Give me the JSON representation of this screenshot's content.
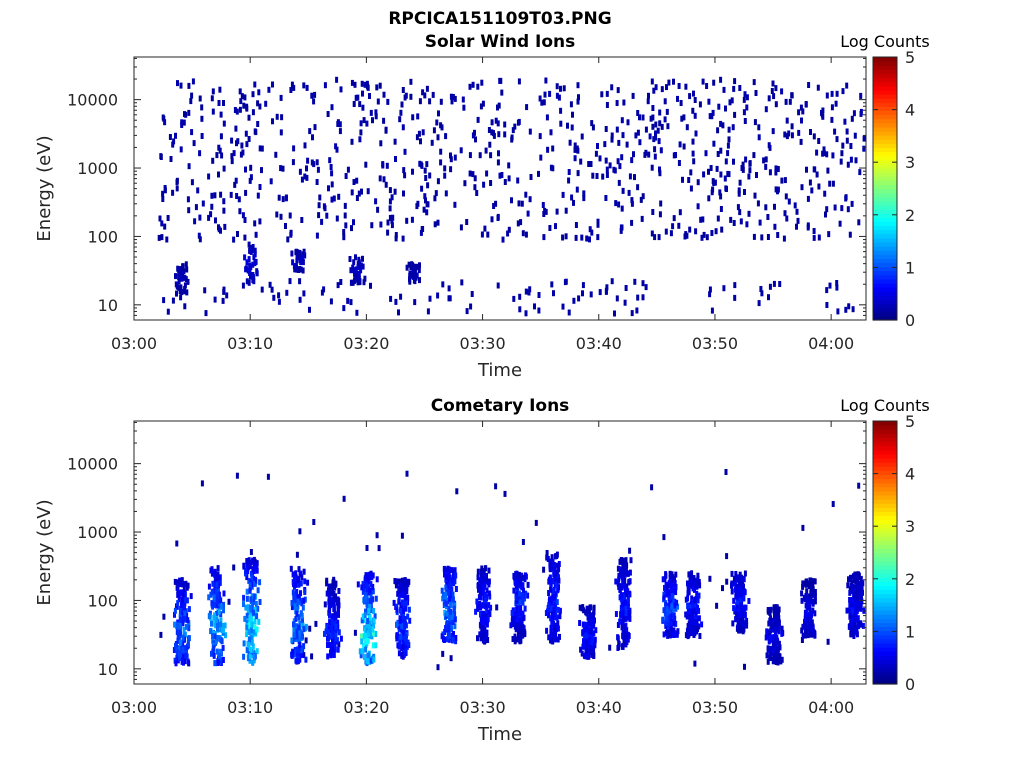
{
  "figure": {
    "title": "RPCICA151109T03.PNG"
  },
  "chart_data": [
    {
      "type": "heatmap",
      "title": "Solar Wind Ions",
      "xlabel": "Time",
      "ylabel": "Energy (eV)",
      "yscale": "log",
      "ylim": [
        6,
        42000
      ],
      "xlim": [
        "03:00",
        "04:03"
      ],
      "x_ticks": [
        "03:00",
        "03:10",
        "03:20",
        "03:30",
        "03:40",
        "03:50",
        "04:00"
      ],
      "y_ticks": [
        "10",
        "100",
        "1000",
        "10000"
      ],
      "colorbar": {
        "label": "Log Counts",
        "ticks": [
          "0",
          "1",
          "2",
          "3",
          "4",
          "5"
        ],
        "range": [
          0,
          5
        ],
        "colormap": "jet"
      },
      "data_start": "03:02",
      "data_end": "04:03",
      "summary": "Sparse counts (log ~0-0.5) scattered between 100 eV and 20000 eV throughout; low-energy bursts (10-80 eV) near 03:05, 03:10, 03:14, 03:19, 03:24",
      "bursts": [
        {
          "time": "03:04",
          "energy_range": [
            15,
            40
          ],
          "level": 0.3
        },
        {
          "time": "03:10",
          "energy_range": [
            20,
            80
          ],
          "level": 0.5
        },
        {
          "time": "03:14",
          "energy_range": [
            30,
            60
          ],
          "level": 0.4
        },
        {
          "time": "03:19",
          "energy_range": [
            20,
            50
          ],
          "level": 0.4
        },
        {
          "time": "03:24",
          "energy_range": [
            20,
            40
          ],
          "level": 0.3
        }
      ],
      "background_level": 0.2
    },
    {
      "type": "heatmap",
      "title": "Cometary Ions",
      "xlabel": "Time",
      "ylabel": "Energy (eV)",
      "yscale": "log",
      "ylim": [
        6,
        42000
      ],
      "xlim": [
        "03:00",
        "04:03"
      ],
      "x_ticks": [
        "03:00",
        "03:10",
        "03:20",
        "03:30",
        "03:40",
        "03:50",
        "04:00"
      ],
      "y_ticks": [
        "10",
        "100",
        "1000",
        "10000"
      ],
      "colorbar": {
        "label": "Log Counts",
        "ticks": [
          "0",
          "1",
          "2",
          "3",
          "4",
          "5"
        ],
        "range": [
          0,
          5
        ],
        "colormap": "jet"
      },
      "bursts": [
        {
          "time": "03:04",
          "energy_range": [
            12,
            200
          ],
          "peak_energy": 35,
          "level": 1.3
        },
        {
          "time": "03:07",
          "energy_range": [
            12,
            300
          ],
          "peak_energy": 40,
          "level": 1.6
        },
        {
          "time": "03:10",
          "energy_range": [
            12,
            400
          ],
          "peak_energy": 35,
          "level": 2.0
        },
        {
          "time": "03:14",
          "energy_range": [
            12,
            300
          ],
          "peak_energy": 45,
          "level": 1.4
        },
        {
          "time": "03:17",
          "energy_range": [
            15,
            200
          ],
          "peak_energy": 35,
          "level": 0.9
        },
        {
          "time": "03:20",
          "energy_range": [
            12,
            250
          ],
          "peak_energy": 30,
          "level": 2.1
        },
        {
          "time": "03:23",
          "energy_range": [
            15,
            200
          ],
          "peak_energy": 40,
          "level": 1.1
        },
        {
          "time": "03:27",
          "energy_range": [
            25,
            300
          ],
          "peak_energy": 70,
          "level": 1.4
        },
        {
          "time": "03:30",
          "energy_range": [
            25,
            300
          ],
          "peak_energy": 80,
          "level": 0.8
        },
        {
          "time": "03:33",
          "energy_range": [
            25,
            250
          ],
          "peak_energy": 100,
          "level": 0.9
        },
        {
          "time": "03:36",
          "energy_range": [
            25,
            500
          ],
          "peak_energy": 100,
          "level": 0.9
        },
        {
          "time": "03:39",
          "energy_range": [
            15,
            80
          ],
          "peak_energy": 30,
          "level": 0.8
        },
        {
          "time": "03:42",
          "energy_range": [
            20,
            400
          ],
          "peak_energy": 80,
          "level": 0.8
        },
        {
          "time": "03:46",
          "energy_range": [
            30,
            250
          ],
          "peak_energy": 80,
          "level": 1.1
        },
        {
          "time": "03:48",
          "energy_range": [
            30,
            250
          ],
          "peak_energy": 80,
          "level": 0.8
        },
        {
          "time": "03:52",
          "energy_range": [
            35,
            250
          ],
          "peak_energy": 100,
          "level": 0.8
        },
        {
          "time": "03:55",
          "energy_range": [
            12,
            80
          ],
          "peak_energy": 30,
          "level": 0.6
        },
        {
          "time": "03:58",
          "energy_range": [
            30,
            200
          ],
          "peak_energy": 60,
          "level": 0.6
        },
        {
          "time": "04:02",
          "energy_range": [
            30,
            250
          ],
          "peak_energy": 70,
          "level": 0.7
        }
      ],
      "background_level": 0.2
    }
  ]
}
